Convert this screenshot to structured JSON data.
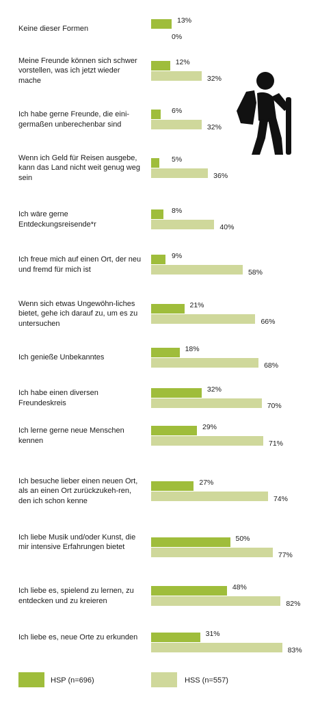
{
  "chart_data": {
    "type": "bar",
    "orientation": "horizontal",
    "xlim": [
      0,
      100
    ],
    "grid": false,
    "legend_placement": "bottom",
    "categories": [
      "Keine dieser Formen",
      "Meine Freunde können sich schwer vorstellen, was ich jetzt wieder mache",
      "Ich habe gerne Freunde, die eini-germaßen unberechenbar sind",
      "Wenn ich Geld für Reisen ausgebe, kann das Land nicht weit genug weg sein",
      "Ich wäre gerne Entdeckungsreisende*r",
      "Ich freue mich auf einen Ort, der neu und fremd für mich ist",
      "Wenn sich etwas Ungewöhn-liches bietet, gehe ich darauf zu, um es zu untersuchen",
      "Ich genieße Unbekanntes",
      "Ich habe einen diversen Freundeskreis",
      "Ich lerne gerne neue Menschen kennen",
      "Ich besuche lieber einen neuen Ort, als an einen Ort zurückzukeh-ren, den ich schon kenne",
      "Ich liebe Musik und/oder Kunst, die mir intensive Erfahrungen bietet",
      "Ich liebe es, spielend zu lernen, zu entdecken und zu kreieren",
      "Ich liebe es, neue Orte zu erkunden"
    ],
    "series": [
      {
        "name": "HSP (n=696)",
        "color": "#9fbd3b",
        "values": [
          13,
          12,
          6,
          5,
          8,
          9,
          21,
          18,
          32,
          29,
          27,
          50,
          48,
          31
        ]
      },
      {
        "name": "HSS (n=557)",
        "color": "#cfd89b",
        "values": [
          0,
          32,
          32,
          36,
          40,
          58,
          66,
          68,
          70,
          71,
          74,
          77,
          82,
          83
        ]
      }
    ],
    "value_suffix": "%"
  },
  "icon": "hiker-icon"
}
